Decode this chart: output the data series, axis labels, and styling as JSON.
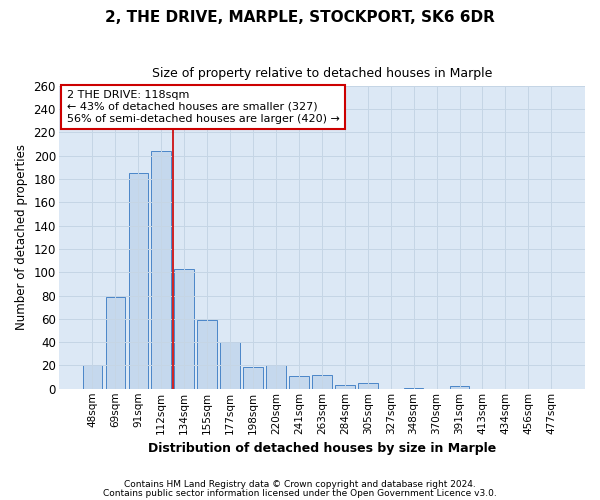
{
  "title": "2, THE DRIVE, MARPLE, STOCKPORT, SK6 6DR",
  "subtitle": "Size of property relative to detached houses in Marple",
  "xlabel": "Distribution of detached houses by size in Marple",
  "ylabel": "Number of detached properties",
  "categories": [
    "48sqm",
    "69sqm",
    "91sqm",
    "112sqm",
    "134sqm",
    "155sqm",
    "177sqm",
    "198sqm",
    "220sqm",
    "241sqm",
    "263sqm",
    "284sqm",
    "305sqm",
    "327sqm",
    "348sqm",
    "370sqm",
    "391sqm",
    "413sqm",
    "434sqm",
    "456sqm",
    "477sqm"
  ],
  "values": [
    20,
    79,
    185,
    204,
    103,
    59,
    40,
    19,
    20,
    11,
    12,
    3,
    5,
    0,
    1,
    0,
    2,
    0,
    0,
    0,
    0
  ],
  "bar_color": "#c5d8ed",
  "bar_edge_color": "#4a86c8",
  "bar_edge_width": 0.7,
  "red_line_color": "#cc0000",
  "red_line_x": 3.5,
  "annotation_title": "2 THE DRIVE: 118sqm",
  "annotation_line1": "← 43% of detached houses are smaller (327)",
  "annotation_line2": "56% of semi-detached houses are larger (420) →",
  "annotation_box_color": "#ffffff",
  "annotation_box_edge": "#cc0000",
  "grid_color": "#c5d5e5",
  "fig_background": "#ffffff",
  "plot_background": "#dce8f5",
  "ylim": [
    0,
    260
  ],
  "yticks": [
    0,
    20,
    40,
    60,
    80,
    100,
    120,
    140,
    160,
    180,
    200,
    220,
    240,
    260
  ],
  "footnote1": "Contains HM Land Registry data © Crown copyright and database right 2024.",
  "footnote2": "Contains public sector information licensed under the Open Government Licence v3.0."
}
